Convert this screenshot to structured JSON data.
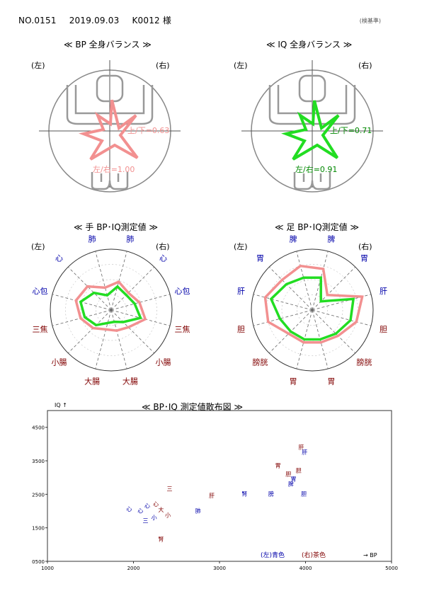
{
  "header": {
    "no": "NO.0151",
    "date": "2019.09.03",
    "client": "K0012 様",
    "stamp": "(検基準)"
  },
  "colors": {
    "bp": "#f29090",
    "iq": "#22dd22",
    "left_label": "#0000aa",
    "right_label": "#800000"
  },
  "balance_panels": [
    {
      "title": "≪ BP 全身バランス ≫",
      "left": "(左)",
      "right": "(右)",
      "ud_label": "上/下=0.63",
      "lr_label": "左/右=1.00",
      "ud_ratio": 0.63,
      "lr_ratio": 1.0,
      "series": "bp"
    },
    {
      "title": "≪ IQ 全身バランス ≫",
      "left": "(左)",
      "right": "(右)",
      "ud_label": "上/下=0.71",
      "lr_label": "左/右=0.91",
      "ud_ratio": 0.71,
      "lr_ratio": 0.91,
      "series": "iq"
    }
  ],
  "chart_data": [
    {
      "type": "radar",
      "title": "≪ 手 BP･IQ測定値 ≫",
      "side_left": "(左)",
      "side_right": "(右)",
      "categories": [
        "肺",
        "心",
        "心包",
        "三焦",
        "小腸",
        "大腸",
        "大腸",
        "小腸",
        "三焦",
        "心包",
        "心",
        "肺"
      ],
      "category_colors": [
        "left_label",
        "left_label",
        "left_label",
        "right_label",
        "right_label",
        "right_label",
        "right_label",
        "right_label",
        "right_label",
        "left_label",
        "left_label",
        "left_label"
      ],
      "series": [
        {
          "name": "BP",
          "values": [
            0.38,
            0.55,
            0.6,
            0.52,
            0.42,
            0.33,
            0.35,
            0.4,
            0.58,
            0.48,
            0.4,
            0.48
          ]
        },
        {
          "name": "IQ",
          "values": [
            0.25,
            0.4,
            0.52,
            0.45,
            0.35,
            0.22,
            0.2,
            0.28,
            0.5,
            0.4,
            0.35,
            0.4
          ]
        }
      ]
    },
    {
      "type": "radar",
      "title": "≪ 足 BP･IQ測定値 ≫",
      "side_left": "(左)",
      "side_right": "(右)",
      "categories": [
        "脾",
        "胃",
        "肝",
        "胆",
        "膀胱",
        "胃",
        "胃",
        "膀胱",
        "胆",
        "肝",
        "胃",
        "脾"
      ],
      "category_colors": [
        "left_label",
        "left_label",
        "left_label",
        "right_label",
        "right_label",
        "right_label",
        "right_label",
        "right_label",
        "right_label",
        "left_label",
        "left_label",
        "left_label"
      ],
      "series": [
        {
          "name": "BP",
          "values": [
            0.75,
            0.7,
            0.8,
            0.75,
            0.55,
            0.55,
            0.55,
            0.6,
            0.75,
            0.85,
            0.35,
            0.7
          ]
        },
        {
          "name": "IQ",
          "values": [
            0.55,
            0.6,
            0.7,
            0.55,
            0.5,
            0.5,
            0.5,
            0.55,
            0.65,
            0.7,
            0.2,
            0.55
          ]
        }
      ]
    },
    {
      "type": "scatter",
      "title": "≪ BP･IQ 測定値散布図 ≫",
      "xlabel": "→ BP",
      "ylabel": "IQ ↑",
      "xlim": [
        1000,
        5000
      ],
      "ylim": [
        500,
        5000
      ],
      "xticks": [
        "1000",
        "2000",
        "3000",
        "4000",
        "5000"
      ],
      "yticks": [
        "0500",
        "1500",
        "2500",
        "3500",
        "4500"
      ],
      "legend": {
        "left": "(左)青色",
        "right": "(右)茶色"
      },
      "points": [
        {
          "label": "肝",
          "x": 3950,
          "y": 3850,
          "side": "right"
        },
        {
          "label": "肝",
          "x": 3990,
          "y": 3700,
          "side": "left"
        },
        {
          "label": "胃",
          "x": 3680,
          "y": 3300,
          "side": "right"
        },
        {
          "label": "胆",
          "x": 3920,
          "y": 3150,
          "side": "right"
        },
        {
          "label": "胆",
          "x": 3800,
          "y": 3050,
          "side": "right"
        },
        {
          "label": "脾",
          "x": 3830,
          "y": 2750,
          "side": "left"
        },
        {
          "label": "胃",
          "x": 3860,
          "y": 2900,
          "side": "left"
        },
        {
          "label": "三",
          "x": 2420,
          "y": 2600,
          "side": "right"
        },
        {
          "label": "腎",
          "x": 3290,
          "y": 2450,
          "side": "left"
        },
        {
          "label": "膀",
          "x": 3600,
          "y": 2450,
          "side": "left"
        },
        {
          "label": "胆",
          "x": 3980,
          "y": 2450,
          "side": "left"
        },
        {
          "label": "肝",
          "x": 2910,
          "y": 2400,
          "side": "right"
        },
        {
          "label": "心",
          "x": 1950,
          "y": 2000,
          "side": "left"
        },
        {
          "label": "心",
          "x": 2080,
          "y": 1950,
          "side": "left"
        },
        {
          "label": "心",
          "x": 2160,
          "y": 2100,
          "side": "left"
        },
        {
          "label": "心",
          "x": 2260,
          "y": 2150,
          "side": "right"
        },
        {
          "label": "大",
          "x": 2320,
          "y": 1980,
          "side": "right"
        },
        {
          "label": "小",
          "x": 2400,
          "y": 1820,
          "side": "right"
        },
        {
          "label": "肺",
          "x": 2750,
          "y": 1950,
          "side": "left"
        },
        {
          "label": "三",
          "x": 2140,
          "y": 1650,
          "side": "left"
        },
        {
          "label": "小",
          "x": 2240,
          "y": 1750,
          "side": "left"
        },
        {
          "label": "腎",
          "x": 2320,
          "y": 1100,
          "side": "right"
        }
      ]
    }
  ]
}
